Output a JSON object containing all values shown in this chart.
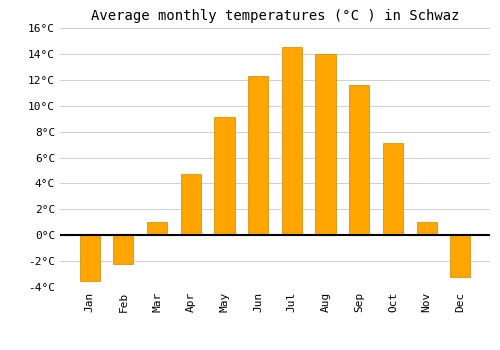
{
  "title": "Average monthly temperatures (°C ) in Schwaz",
  "months": [
    "Jan",
    "Feb",
    "Mar",
    "Apr",
    "May",
    "Jun",
    "Jul",
    "Aug",
    "Sep",
    "Oct",
    "Nov",
    "Dec"
  ],
  "values": [
    -3.5,
    -2.2,
    1.0,
    4.7,
    9.1,
    12.3,
    14.5,
    14.0,
    11.6,
    7.1,
    1.0,
    -3.2
  ],
  "bar_color": "#FFA500",
  "bar_edge_color": "#CC8800",
  "background_color": "#ffffff",
  "grid_color": "#d0d0d0",
  "ylim": [
    -4,
    16
  ],
  "yticks": [
    -4,
    -2,
    0,
    2,
    4,
    6,
    8,
    10,
    12,
    14,
    16
  ],
  "title_fontsize": 10,
  "tick_fontsize": 8,
  "bar_width": 0.6
}
